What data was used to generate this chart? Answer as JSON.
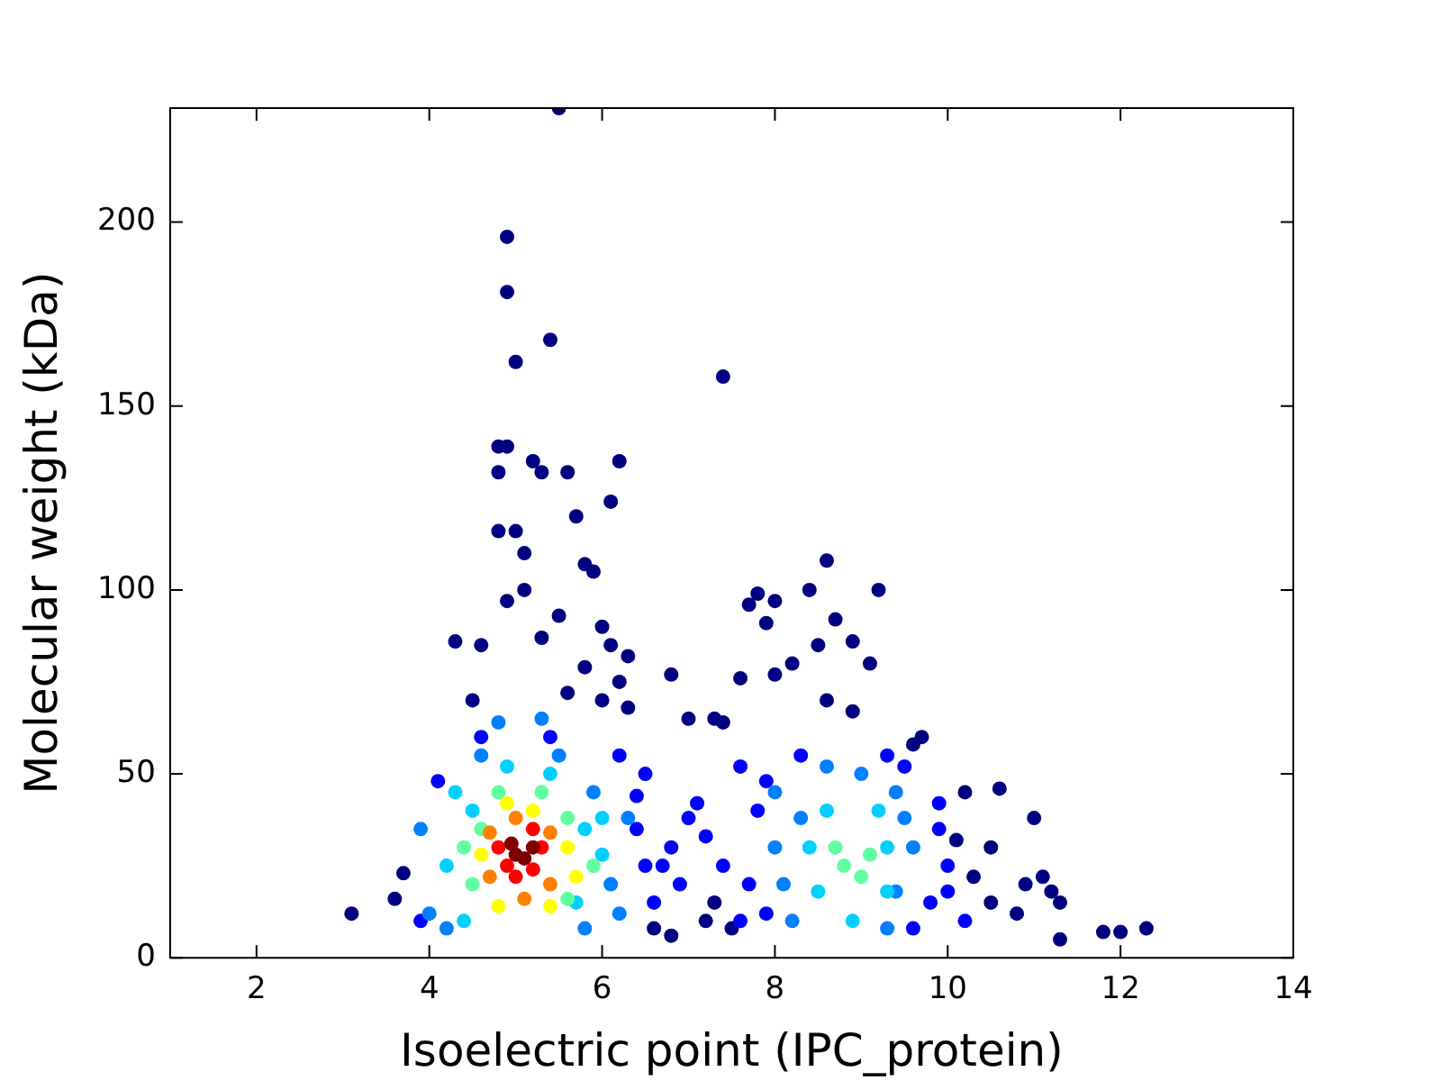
{
  "chart_data": {
    "type": "scatter",
    "xlabel": "Isoelectric point (IPC_protein)",
    "ylabel": "Molecular weight (kDa)",
    "xlim": [
      1,
      14
    ],
    "ylim": [
      0,
      231
    ],
    "xticks": [
      2,
      4,
      6,
      8,
      10,
      12,
      14
    ],
    "yticks": [
      0,
      50,
      100,
      150,
      200
    ],
    "grid": false,
    "legend": false,
    "marker": "circle",
    "series": [
      {
        "x": [
          5.5,
          4.9,
          4.9,
          5.4,
          5.0,
          7.4,
          4.8,
          4.9,
          5.6,
          6.2,
          5.2,
          5.3,
          4.8,
          6.1,
          5.7,
          5.0,
          4.8,
          5.8,
          5.9,
          5.1,
          8.6,
          8.4,
          9.2,
          8.7,
          7.8,
          8.0,
          7.7,
          7.9,
          5.1,
          4.9,
          5.5,
          6.0,
          6.1,
          6.2,
          4.6,
          4.3,
          5.3,
          5.8,
          6.3,
          8.5,
          8.9,
          9.1,
          8.2,
          8.0,
          6.8,
          7.6,
          6.3,
          6.0,
          4.5,
          5.6,
          8.6,
          8.9,
          7.0,
          7.3,
          7.4,
          9.7,
          9.6,
          10.2,
          10.6,
          11.0,
          11.8,
          12.0,
          12.3,
          11.3,
          11.2,
          10.9,
          11.1,
          10.8,
          11.3,
          10.5,
          10.3,
          10.5,
          10.1,
          3.1,
          3.6,
          3.7,
          6.6,
          6.8,
          7.2,
          7.3,
          7.5,
          4.6,
          5.4,
          6.2,
          6.5,
          7.6,
          7.9,
          9.5,
          9.9,
          10.0,
          9.8,
          10.2,
          6.9,
          7.4,
          7.0,
          6.8,
          6.6,
          7.8,
          7.9,
          6.4,
          7.1,
          6.7,
          7.2,
          7.7,
          7.6,
          9.9,
          10.0,
          3.9,
          4.1,
          6.5,
          6.4,
          9.6,
          8.3,
          9.3,
          4.6,
          5.5,
          5.9,
          6.3,
          6.1,
          6.2,
          8.0,
          8.1,
          8.0,
          9.4,
          9.6,
          9.4,
          8.2,
          9.3,
          4.0,
          3.9,
          4.2,
          5.8,
          8.6,
          9.0,
          8.3,
          9.5,
          5.3,
          4.8,
          4.3,
          5.8,
          4.2,
          4.4,
          5.7,
          6.0,
          8.4,
          9.3,
          8.5,
          9.3,
          8.6,
          9.2,
          8.9,
          4.9,
          5.4,
          4.5,
          6.0,
          8.8,
          9.0,
          8.7,
          9.1,
          4.6,
          5.6,
          4.5,
          5.6,
          4.8,
          5.3,
          4.4,
          5.9,
          4.6,
          5.6,
          4.9,
          5.2,
          4.8,
          5.4,
          5.7,
          4.7,
          5.4,
          4.7,
          5.4,
          5.0,
          5.1,
          4.8,
          5.3,
          5.0,
          5.2,
          4.9,
          5.2,
          5.0,
          5.1,
          5.2,
          4.95
        ],
        "values": [
          231,
          196,
          181,
          168,
          162,
          158,
          139,
          139,
          132,
          135,
          135,
          132,
          132,
          124,
          120,
          116,
          116,
          107,
          105,
          110,
          108,
          100,
          100,
          92,
          99,
          97,
          96,
          91,
          100,
          97,
          93,
          90,
          85,
          75,
          85,
          86,
          87,
          79,
          82,
          85,
          86,
          80,
          80,
          77,
          77,
          76,
          68,
          70,
          70,
          72,
          70,
          67,
          65,
          65,
          64,
          60,
          58,
          45,
          46,
          38,
          7,
          7,
          8,
          15,
          18,
          20,
          22,
          12,
          5,
          15,
          22,
          30,
          32,
          12,
          16,
          23,
          8,
          6,
          10,
          15,
          8,
          60,
          60,
          55,
          50,
          52,
          48,
          52,
          35,
          25,
          15,
          10,
          20,
          25,
          38,
          30,
          15,
          40,
          12,
          44,
          42,
          25,
          33,
          20,
          10,
          42,
          18,
          10,
          48,
          25,
          35,
          8,
          55,
          55,
          55,
          55,
          45,
          38,
          20,
          12,
          30,
          20,
          45,
          45,
          30,
          18,
          10,
          8,
          12,
          35,
          8,
          8,
          52,
          50,
          38,
          38,
          65,
          64,
          45,
          35,
          25,
          10,
          15,
          28,
          30,
          30,
          18,
          18,
          40,
          40,
          10,
          52,
          50,
          40,
          38,
          25,
          22,
          30,
          28,
          35,
          38,
          20,
          16,
          45,
          45,
          30,
          25,
          28,
          30,
          42,
          40,
          14,
          14,
          22,
          34,
          34,
          22,
          20,
          38,
          16,
          30,
          30,
          22,
          35,
          25,
          24,
          28,
          27,
          30,
          31
        ],
        "colors": [
          "#000080",
          "#000080",
          "#000080",
          "#000080",
          "#000080",
          "#000080",
          "#000080",
          "#000080",
          "#000080",
          "#000080",
          "#000080",
          "#000080",
          "#000080",
          "#000080",
          "#000080",
          "#000080",
          "#000080",
          "#000080",
          "#000080",
          "#000080",
          "#000080",
          "#000080",
          "#000080",
          "#000080",
          "#000080",
          "#000080",
          "#000080",
          "#000080",
          "#000080",
          "#000080",
          "#000080",
          "#000080",
          "#000080",
          "#000080",
          "#000080",
          "#000080",
          "#000080",
          "#000080",
          "#000080",
          "#000080",
          "#000080",
          "#000080",
          "#000080",
          "#000080",
          "#000080",
          "#000080",
          "#000080",
          "#000080",
          "#000080",
          "#000080",
          "#000080",
          "#000080",
          "#000080",
          "#000080",
          "#000080",
          "#000080",
          "#000080",
          "#000080",
          "#000080",
          "#000080",
          "#000080",
          "#000080",
          "#000080",
          "#000080",
          "#000080",
          "#000080",
          "#000080",
          "#000080",
          "#000080",
          "#000080",
          "#000080",
          "#000080",
          "#000080",
          "#000080",
          "#000080",
          "#000080",
          "#000080",
          "#000080",
          "#000080",
          "#000080",
          "#000080",
          "#0000ff",
          "#0000ff",
          "#0000ff",
          "#0000ff",
          "#0000ff",
          "#0000ff",
          "#0000ff",
          "#0000ff",
          "#0000ff",
          "#0000ff",
          "#0000ff",
          "#0000ff",
          "#0000ff",
          "#0000ff",
          "#0000ff",
          "#0000ff",
          "#0000ff",
          "#0000ff",
          "#0000ff",
          "#0000ff",
          "#0000ff",
          "#0000ff",
          "#0000ff",
          "#0000ff",
          "#0000ff",
          "#0000ff",
          "#0000ff",
          "#0000ff",
          "#0000ff",
          "#0000ff",
          "#0000ff",
          "#0000ff",
          "#0000ff",
          "#0080ff",
          "#0080ff",
          "#0080ff",
          "#0080ff",
          "#0080ff",
          "#0080ff",
          "#0080ff",
          "#0080ff",
          "#0080ff",
          "#0080ff",
          "#0080ff",
          "#0080ff",
          "#0080ff",
          "#0080ff",
          "#0080ff",
          "#0080ff",
          "#0080ff",
          "#0080ff",
          "#0080ff",
          "#0080ff",
          "#0080ff",
          "#0080ff",
          "#0080ff",
          "#0080ff",
          "#00d0ff",
          "#00d0ff",
          "#00d0ff",
          "#00d0ff",
          "#00d0ff",
          "#00d0ff",
          "#00d0ff",
          "#00d0ff",
          "#00d0ff",
          "#00d0ff",
          "#00d0ff",
          "#00d0ff",
          "#00d0ff",
          "#00d0ff",
          "#00d0ff",
          "#00d0ff",
          "#00d0ff",
          "#60ffa0",
          "#60ffa0",
          "#60ffa0",
          "#60ffa0",
          "#60ffa0",
          "#60ffa0",
          "#60ffa0",
          "#60ffa0",
          "#60ffa0",
          "#60ffa0",
          "#60ffa0",
          "#60ffa0",
          "#ffff00",
          "#ffff00",
          "#ffff00",
          "#ffff00",
          "#ffff00",
          "#ffff00",
          "#ffff00",
          "#ff8000",
          "#ff8000",
          "#ff8000",
          "#ff8000",
          "#ff8000",
          "#ff8000",
          "#ff0000",
          "#ff0000",
          "#ff0000",
          "#ff0000",
          "#ff0000",
          "#ff0000",
          "#800000",
          "#800000",
          "#800000",
          "#800000"
        ]
      }
    ]
  }
}
